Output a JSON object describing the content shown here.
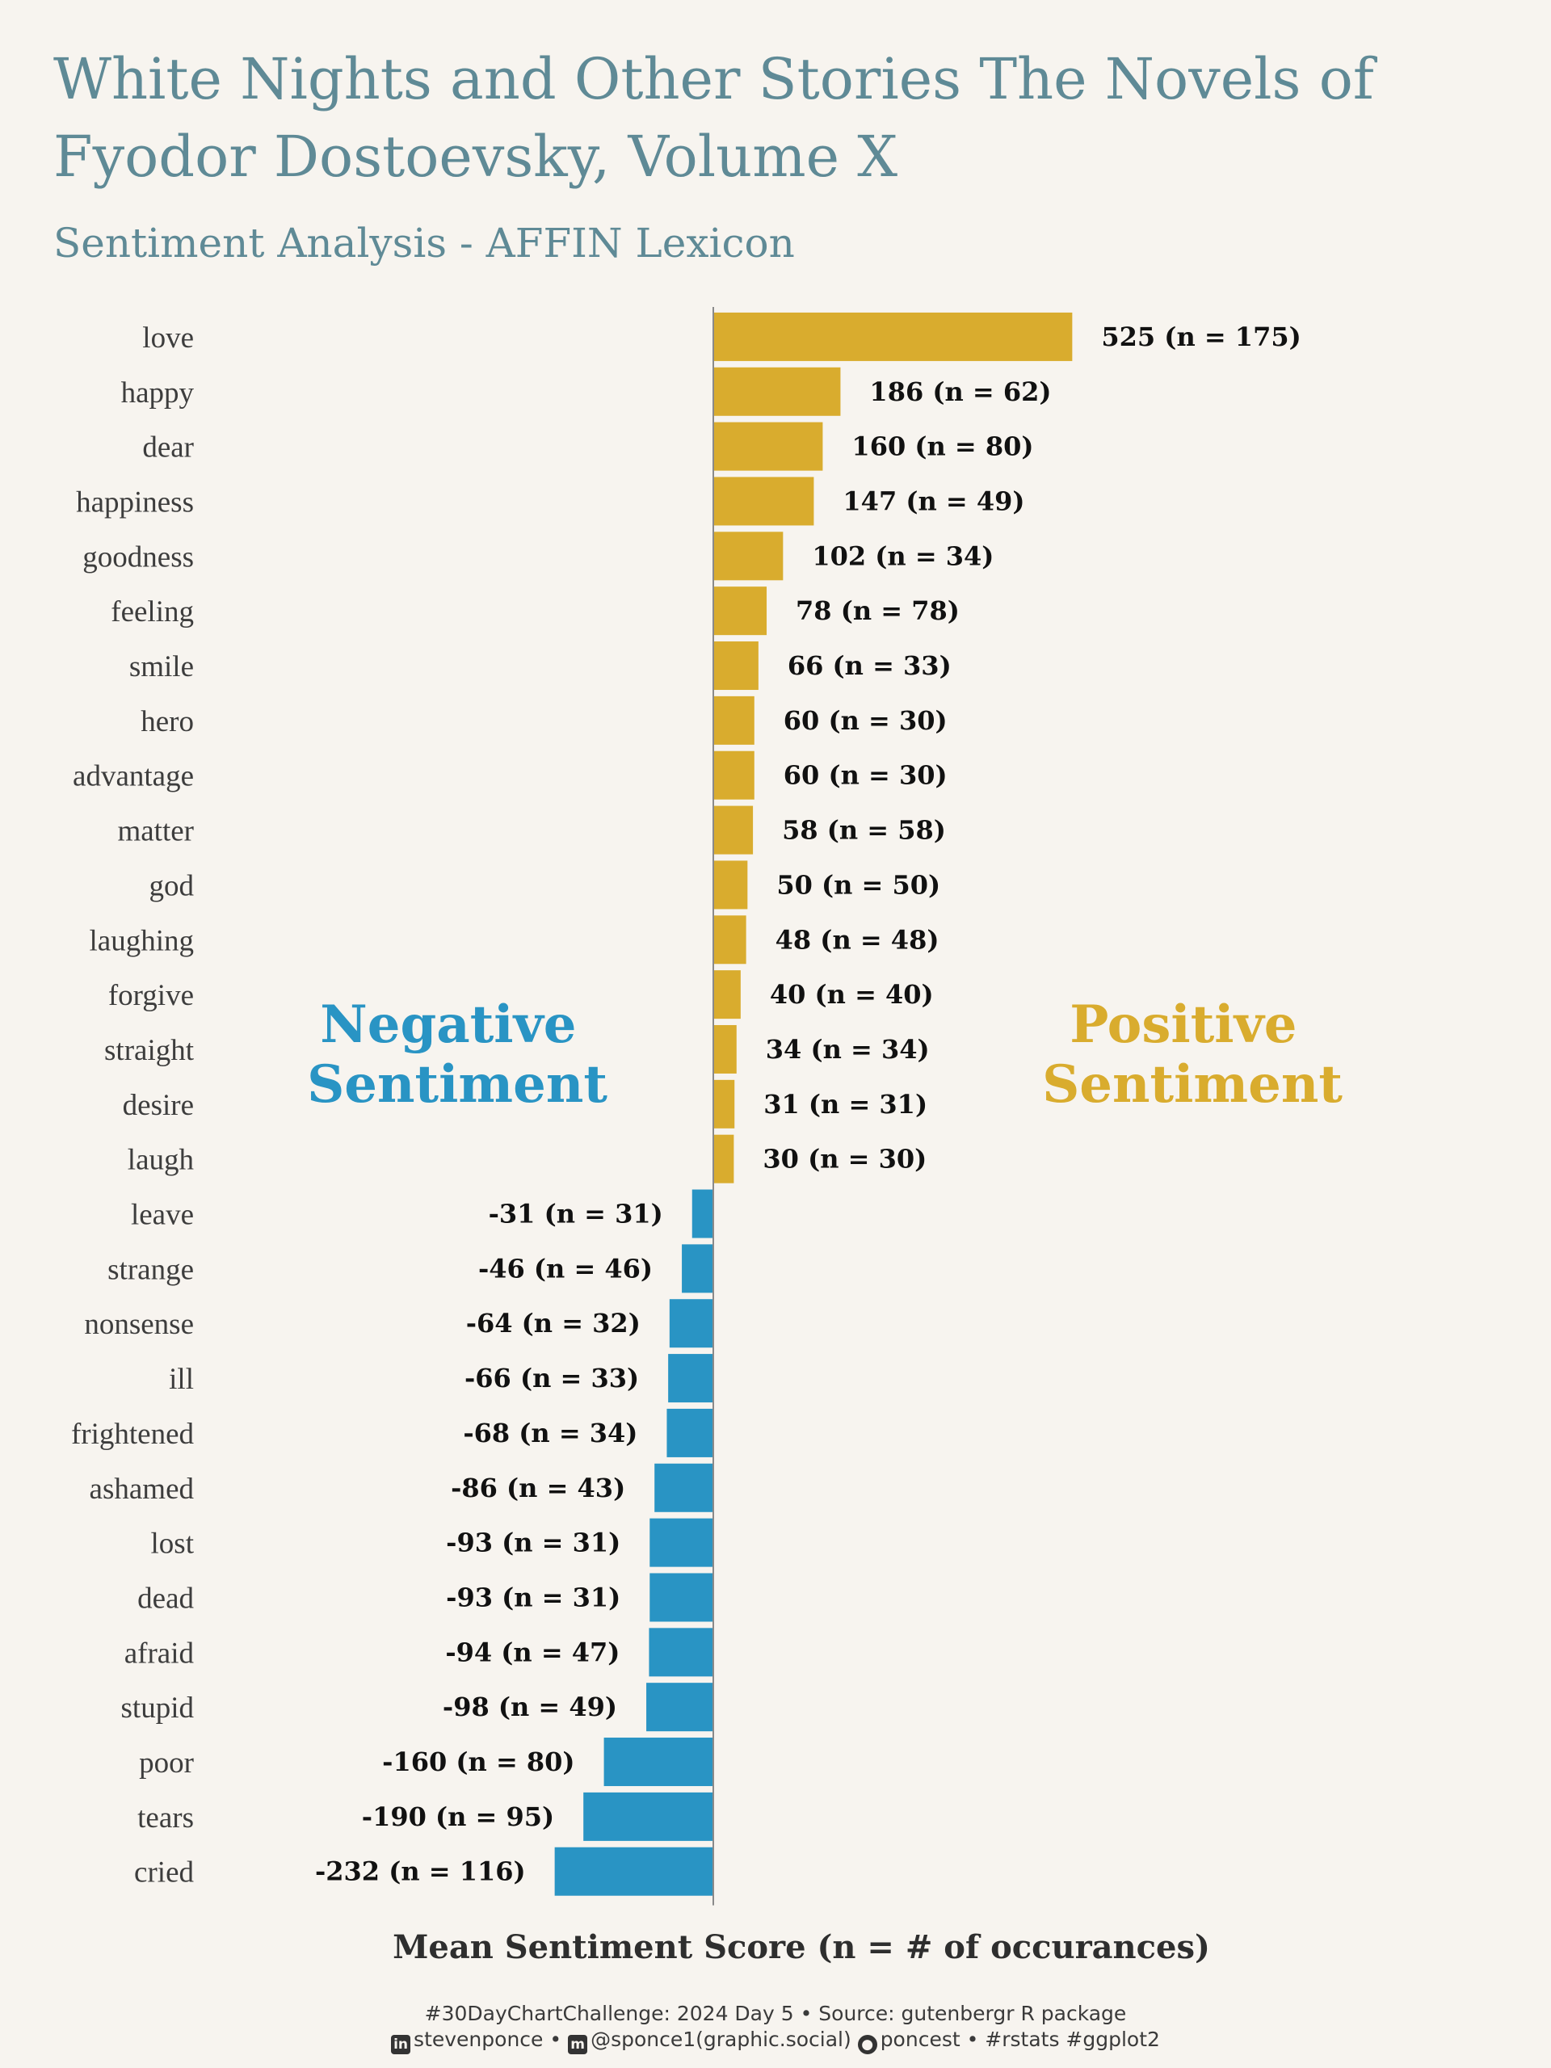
{
  "title": "White Nights and Other Stories The Novels of Fyodor Dostoevsky, Volume X",
  "subtitle": "Sentiment Analysis - AFFIN Lexicon",
  "chart_data": {
    "type": "bar",
    "orientation": "horizontal",
    "title": "White Nights and Other Stories The Novels of Fyodor Dostoevsky, Volume X",
    "subtitle": "Sentiment Analysis - AFFIN Lexicon",
    "xlabel": "Mean Sentiment Score (n = # of occurances)",
    "ylabel": "",
    "grid": false,
    "annotations": [
      {
        "text": "Negative Sentiment",
        "color": "#2994c4"
      },
      {
        "text": "Positive Sentiment",
        "color": "#d9ac2e"
      }
    ],
    "colors": {
      "positive": "#d9ac2e",
      "negative": "#2994c4",
      "axis": "#8a8a8a"
    },
    "categories": [
      "love",
      "happy",
      "dear",
      "happiness",
      "goodness",
      "feeling",
      "smile",
      "hero",
      "advantage",
      "matter",
      "god",
      "laughing",
      "forgive",
      "straight",
      "desire",
      "laugh",
      "leave",
      "strange",
      "nonsense",
      "ill",
      "frightened",
      "ashamed",
      "lost",
      "dead",
      "afraid",
      "stupid",
      "poor",
      "tears",
      "cried"
    ],
    "values": [
      525,
      186,
      160,
      147,
      102,
      78,
      66,
      60,
      60,
      58,
      50,
      48,
      40,
      34,
      31,
      30,
      -31,
      -46,
      -64,
      -66,
      -68,
      -86,
      -93,
      -93,
      -94,
      -98,
      -160,
      -190,
      -232
    ],
    "counts": [
      175,
      62,
      80,
      49,
      34,
      78,
      33,
      30,
      30,
      58,
      50,
      48,
      40,
      34,
      31,
      30,
      31,
      46,
      32,
      33,
      34,
      43,
      31,
      31,
      47,
      49,
      80,
      95,
      116
    ],
    "labels": [
      "525 (n = 175)",
      "186 (n = 62)",
      "160 (n = 80)",
      "147 (n = 49)",
      "102 (n = 34)",
      "78 (n = 78)",
      "66 (n = 33)",
      "60 (n = 30)",
      "60 (n = 30)",
      "58 (n = 58)",
      "50 (n = 50)",
      "48 (n = 48)",
      "40 (n = 40)",
      "34 (n = 34)",
      "31 (n = 31)",
      "30 (n = 30)",
      "-31 (n = 31)",
      "-46 (n = 46)",
      "-64 (n = 32)",
      "-66 (n = 33)",
      "-68 (n = 34)",
      "-86 (n = 43)",
      "-93 (n = 31)",
      "-93 (n = 31)",
      "-94 (n = 47)",
      "-98 (n = 49)",
      "-160 (n = 80)",
      "-190 (n = 95)",
      "-232 (n = 116)"
    ]
  },
  "caption": {
    "line1": "#30DayChartChallenge: 2024 Day 5 • Source: gutenbergr R package",
    "linkedin": "stevenponce •",
    "mastodon": "@sponce1(graphic.social)",
    "github": "poncest • #rstats #ggplot2",
    "icons": [
      "linkedin-icon",
      "mastodon-icon",
      "github-icon"
    ]
  }
}
